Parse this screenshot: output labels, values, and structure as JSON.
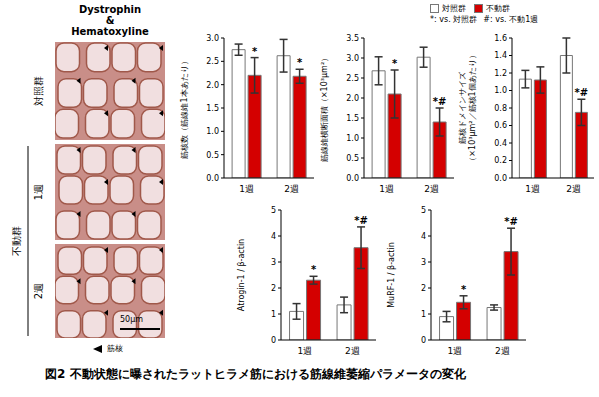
{
  "caption": "図2 不動状態に曝されたラットヒラメ筋における筋線維萎縮パラメータの変化",
  "histology": {
    "title": [
      "Dystrophin",
      "&",
      "Hematoxyline"
    ],
    "control_label": "対照群",
    "immobilized_label": "不動群",
    "immobilized_panels": [
      "1週",
      "2週"
    ],
    "scale_bar": "50μm",
    "marker_label": "筋核"
  },
  "significance_notes": [
    "*: vs. 対照群",
    "#: vs. 不動1週"
  ],
  "chart_data": [
    {
      "type": "bar",
      "y_label": [
        "筋核数（筋線維1本あたり）"
      ],
      "categories": [
        "1週",
        "2週"
      ],
      "ylim": [
        0,
        3.0
      ],
      "yticks": [
        {
          "value": 0,
          "label": "0.0"
        },
        0.5,
        {
          "value": 1,
          "label": "1.0"
        },
        1.5,
        {
          "value": 2,
          "label": "2.0"
        },
        2.5,
        {
          "value": 3,
          "label": "3.0"
        }
      ],
      "grid": false,
      "series": [
        {
          "name": "対照群",
          "color": "#ffffff",
          "values": [
            2.75,
            2.62
          ],
          "errors": [
            0.12,
            0.35
          ],
          "annotations": [
            null,
            null
          ]
        },
        {
          "name": "不動群",
          "color": "#d40000",
          "values": [
            2.2,
            2.18
          ],
          "errors": [
            0.38,
            0.15
          ],
          "annotations": [
            "*",
            "*"
          ]
        }
      ]
    },
    {
      "type": "bar",
      "y_label": [
        "筋線維横断面積（×10³μm²）"
      ],
      "categories": [
        "1週",
        "2週"
      ],
      "ylim": [
        0,
        3.5
      ],
      "yticks": [
        {
          "value": 0,
          "label": "0.0"
        },
        0.5,
        {
          "value": 1,
          "label": "1.0"
        },
        1.5,
        {
          "value": 2,
          "label": "2.0"
        },
        2.5,
        {
          "value": 3,
          "label": "3.0"
        },
        3.5
      ],
      "grid": false,
      "series": [
        {
          "name": "対照群",
          "color": "#ffffff",
          "values": [
            2.68,
            3.02
          ],
          "errors": [
            0.35,
            0.25
          ],
          "annotations": [
            null,
            null
          ]
        },
        {
          "name": "不動群",
          "color": "#d40000",
          "values": [
            2.1,
            1.4
          ],
          "errors": [
            0.6,
            0.35
          ],
          "annotations": [
            "*",
            "*#"
          ]
        }
      ]
    },
    {
      "type": "bar",
      "y_label": [
        "筋核ドメインサイズ",
        "（×10³μm²／筋核1個あたり）"
      ],
      "categories": [
        "1週",
        "2週"
      ],
      "ylim": [
        0,
        1.6
      ],
      "yticks": [
        {
          "value": 0,
          "label": "0.0"
        },
        0.2,
        0.4,
        0.6,
        0.8,
        {
          "value": 1,
          "label": "1.0"
        },
        1.2,
        1.4,
        1.6
      ],
      "grid": false,
      "series": [
        {
          "name": "対照群",
          "color": "#ffffff",
          "values": [
            1.13,
            1.4
          ],
          "errors": [
            0.1,
            0.2
          ],
          "annotations": [
            null,
            null
          ]
        },
        {
          "name": "不動群",
          "color": "#d40000",
          "values": [
            1.12,
            0.75
          ],
          "errors": [
            0.15,
            0.15
          ],
          "annotations": [
            null,
            "*#"
          ]
        }
      ]
    },
    {
      "type": "bar",
      "y_label": [
        "Atrogin-1 / β-actin"
      ],
      "categories": [
        "1週",
        "2週"
      ],
      "ylim": [
        0,
        5
      ],
      "yticks": [
        0,
        1,
        2,
        3,
        4,
        5
      ],
      "grid": false,
      "series": [
        {
          "name": "対照群",
          "color": "#ffffff",
          "values": [
            1.1,
            1.35
          ],
          "errors": [
            0.3,
            0.3
          ],
          "annotations": [
            null,
            null
          ]
        },
        {
          "name": "不動群",
          "color": "#d40000",
          "values": [
            2.3,
            3.55
          ],
          "errors": [
            0.15,
            0.8
          ],
          "annotations": [
            "*",
            "*#"
          ]
        }
      ]
    },
    {
      "type": "bar",
      "y_label": [
        "MuRF-1 / β-actin"
      ],
      "categories": [
        "1週",
        "2週"
      ],
      "ylim": [
        0,
        5
      ],
      "yticks": [
        0,
        1,
        2,
        3,
        4,
        5
      ],
      "grid": false,
      "series": [
        {
          "name": "対照群",
          "color": "#ffffff",
          "values": [
            0.9,
            1.25
          ],
          "errors": [
            0.2,
            0.1
          ],
          "annotations": [
            null,
            null
          ]
        },
        {
          "name": "不動群",
          "color": "#d40000",
          "values": [
            1.45,
            3.4
          ],
          "errors": [
            0.25,
            0.9
          ],
          "annotations": [
            "*",
            "*#"
          ]
        }
      ]
    }
  ]
}
